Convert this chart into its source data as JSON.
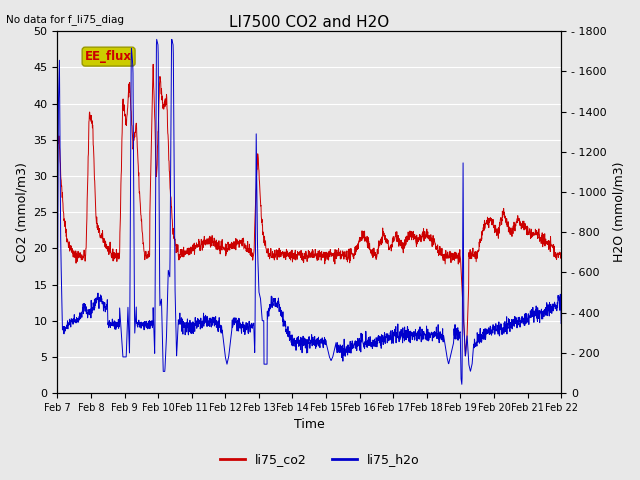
{
  "title": "LI7500 CO2 and H2O",
  "top_left_text": "No data for f_li75_diag",
  "xlabel": "Time",
  "ylabel_left": "CO2 (mmol/m3)",
  "ylabel_right": "H2O (mmol/m3)",
  "ylim_left": [
    0,
    50
  ],
  "ylim_right": [
    0,
    1800
  ],
  "yticks_left": [
    0,
    5,
    10,
    15,
    20,
    25,
    30,
    35,
    40,
    45,
    50
  ],
  "yticks_right": [
    0,
    200,
    400,
    600,
    800,
    1000,
    1200,
    1400,
    1600,
    1800
  ],
  "xtick_labels": [
    "Feb 7",
    "Feb 8",
    "Feb 9",
    "Feb 10",
    "Feb 11",
    "Feb 12",
    "Feb 13",
    "Feb 14",
    "Feb 15",
    "Feb 16",
    "Feb 17",
    "Feb 18",
    "Feb 19",
    "Feb 20",
    "Feb 21",
    "Feb 22"
  ],
  "color_co2": "#cc0000",
  "color_h2o": "#0000cc",
  "bg_color": "#e8e8e8",
  "legend_label_co2": "li75_co2",
  "legend_label_h2o": "li75_h2o",
  "ee_flux_label": "EE_flux",
  "ee_flux_bg": "#cccc00",
  "ee_flux_text_color": "#cc0000",
  "grid_color": "#ffffff",
  "font_size": 9,
  "title_font_size": 11,
  "tick_font_size": 8
}
